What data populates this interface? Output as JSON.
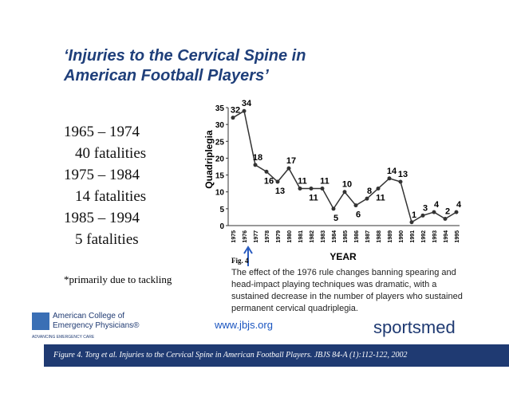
{
  "title": "‘Injuries to the Cervical Spine in American Football Players’",
  "periods": [
    {
      "years": "1965 – 1974",
      "fatalities": "40 fatalities"
    },
    {
      "years": "1975 – 1984",
      "fatalities": "14 fatalities"
    },
    {
      "years": "1985 – 1994",
      "fatalities": "5 fatalities"
    }
  ],
  "note": "*primarily due to tackling",
  "chart_data": {
    "type": "line",
    "y_label": "Quadriplegia",
    "x_label": "YEAR",
    "categories": [
      "1975",
      "1976",
      "1977",
      "1978",
      "1979",
      "1980",
      "1981",
      "1982",
      "1983",
      "1984",
      "1985",
      "1986",
      "1987",
      "1988",
      "1989",
      "1990",
      "1991",
      "1992",
      "1993",
      "1994",
      "1995"
    ],
    "values": [
      32,
      34,
      18,
      16,
      13,
      17,
      11,
      11,
      11,
      5,
      10,
      6,
      8,
      11,
      14,
      13,
      1,
      3,
      4,
      2,
      4
    ],
    "color": "#333333",
    "ylim": [
      0,
      35
    ],
    "yticks": [
      0,
      5,
      10,
      15,
      20,
      25,
      30,
      35
    ],
    "grid": false
  },
  "figure_label": "Fig. 4",
  "caption": "The effect of the 1976 rule changes banning spearing and head-impact playing techniques was dramatic, with a sustained decrease in the number of players who sustained permanent cervical quadriplegia.",
  "url": "www.jbjs.org",
  "logo_acep": {
    "line1": "American College of",
    "line2": "Emergency Physicians®",
    "tagline": "ADVANCING EMERGENCY CARE"
  },
  "logo_sportsmed": "sportsmed",
  "footer": "Figure 4. Torg et al. Injuries to the Cervical Spine in American Football Players. JBJS 84-A (1):112-122, 2002"
}
